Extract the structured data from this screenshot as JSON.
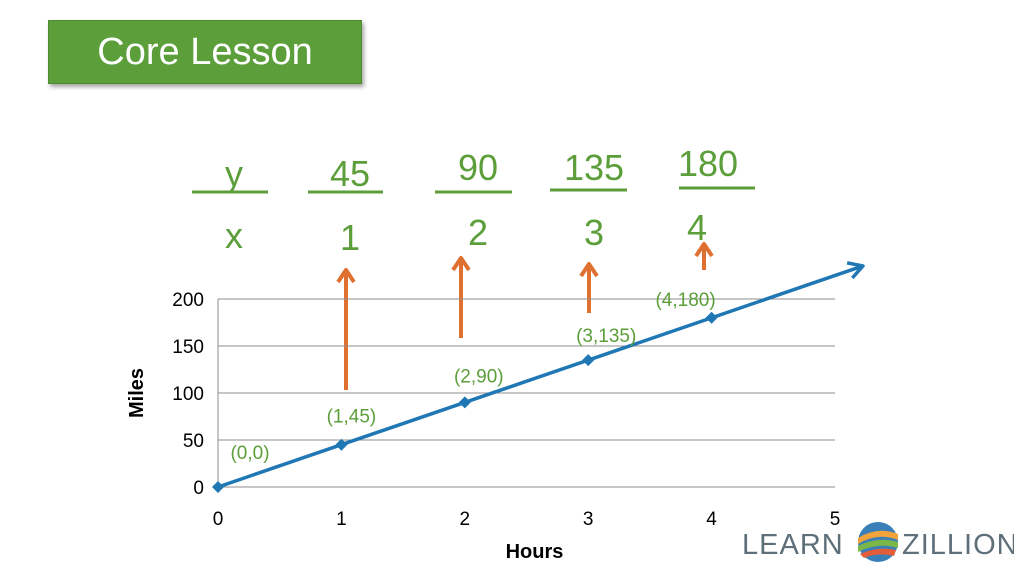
{
  "header": {
    "title": "Core Lesson"
  },
  "table": {
    "y_label": "y",
    "x_label": "x",
    "y_values": [
      "45",
      "90",
      "135",
      "180"
    ],
    "x_values": [
      "1",
      "2",
      "3",
      "4"
    ]
  },
  "colors": {
    "accent_green": "#5b9e3a",
    "line_blue": "#1f77b4",
    "arrow_orange": "#e07030"
  },
  "chart_data": {
    "type": "line",
    "xlabel": "Hours",
    "ylabel": "Miles",
    "xlim": [
      0,
      5
    ],
    "ylim": [
      0,
      200
    ],
    "x_ticks": [
      "0",
      "1",
      "2",
      "3",
      "4",
      "5"
    ],
    "y_ticks": [
      "0",
      "50",
      "100",
      "150",
      "200"
    ],
    "grid": true,
    "series": [
      {
        "x": [
          0,
          1,
          2,
          3,
          4
        ],
        "y": [
          0,
          45,
          90,
          135,
          180
        ]
      }
    ],
    "point_labels": [
      "(0,0)",
      "(1,45)",
      "(2,90)",
      "(3,135)",
      "(4,180)"
    ]
  },
  "logo": {
    "left": "LEARN",
    "right": "ZILLION",
    "icon": "learnzillion-swirl-icon"
  }
}
